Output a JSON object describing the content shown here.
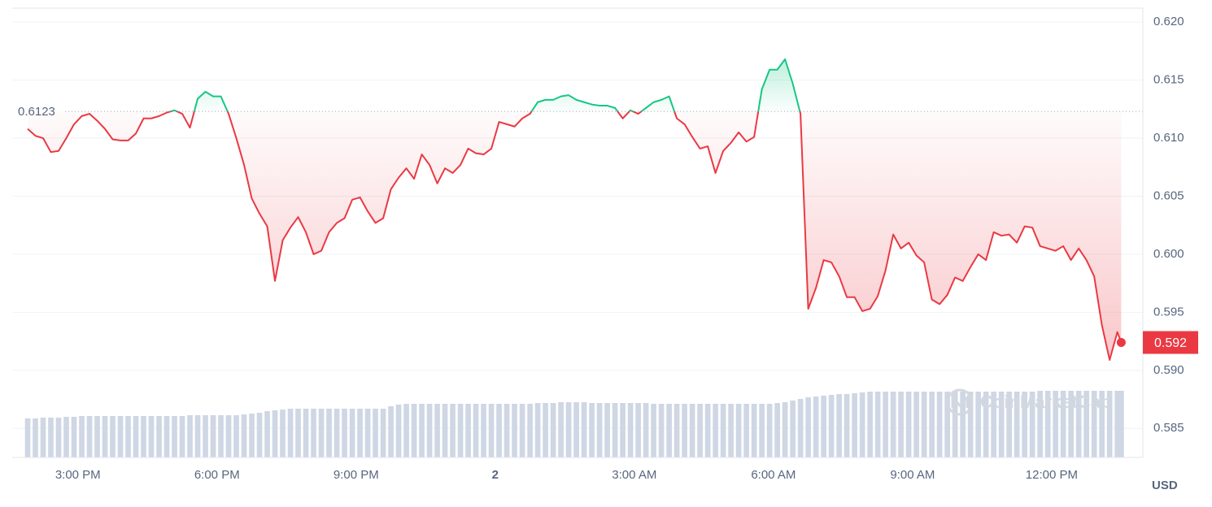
{
  "chart_data": {
    "type": "line",
    "x": [
      115,
      125,
      135,
      145,
      155,
      165,
      175,
      185,
      195,
      205,
      215,
      225,
      235,
      245,
      255,
      265,
      275,
      285,
      295,
      305,
      315,
      325,
      335,
      345,
      355,
      365,
      375,
      385,
      395,
      405,
      415,
      425,
      435,
      445,
      455,
      465,
      475,
      485,
      495,
      505,
      515,
      525,
      535,
      545,
      555,
      565,
      575,
      585,
      595,
      605,
      615,
      625,
      635,
      645,
      655,
      665,
      675,
      685,
      695,
      705,
      715,
      725,
      735,
      745,
      755,
      765,
      775,
      785,
      795,
      805,
      815,
      825,
      835,
      845,
      855,
      865,
      875,
      885,
      895,
      905,
      915,
      925,
      935,
      945,
      955,
      965,
      975,
      985,
      995,
      1005,
      1015,
      1025,
      1035,
      1045,
      1055,
      1065,
      1075,
      1085,
      1095,
      1105,
      1115,
      1125,
      1135,
      1145,
      1155,
      1165,
      1175,
      1185,
      1195,
      1205,
      1215,
      1225,
      1235,
      1245,
      1255,
      1265,
      1275,
      1285,
      1295,
      1305,
      1315,
      1325,
      1335,
      1345,
      1355,
      1365,
      1375,
      1385,
      1395,
      1405,
      1415,
      1425,
      1435,
      1445,
      1455,
      1465,
      1475,
      1485,
      1495,
      1505,
      1515,
      1525,
      1530
    ],
    "values": [
      0.6108,
      0.6102,
      0.61,
      0.6088,
      0.6089,
      0.61,
      0.6112,
      0.6119,
      0.6121,
      0.6115,
      0.6108,
      0.6099,
      0.6098,
      0.6098,
      0.6104,
      0.6117,
      0.6117,
      0.6119,
      0.6122,
      0.6124,
      0.6121,
      0.6109,
      0.6134,
      0.614,
      0.6136,
      0.6136,
      0.6121,
      0.61,
      0.6077,
      0.6048,
      0.6035,
      0.6024,
      0.5977,
      0.6012,
      0.6023,
      0.6032,
      0.6019,
      0.6,
      0.6003,
      0.6019,
      0.6027,
      0.6031,
      0.6047,
      0.6049,
      0.6037,
      0.6027,
      0.6031,
      0.6056,
      0.6066,
      0.6074,
      0.6065,
      0.6086,
      0.6077,
      0.6061,
      0.6074,
      0.607,
      0.6077,
      0.6091,
      0.6087,
      0.6086,
      0.6091,
      0.6114,
      0.6112,
      0.611,
      0.6117,
      0.6121,
      0.6131,
      0.6133,
      0.6133,
      0.6136,
      0.6137,
      0.6133,
      0.6131,
      0.6129,
      0.6128,
      0.6128,
      0.6126,
      0.6117,
      0.6124,
      0.6121,
      0.6126,
      0.6131,
      0.6133,
      0.6136,
      0.6117,
      0.6112,
      0.6101,
      0.6091,
      0.6093,
      0.607,
      0.6089,
      0.6096,
      0.6105,
      0.6097,
      0.6101,
      0.6142,
      0.6159,
      0.6159,
      0.6168,
      0.6147,
      0.6121,
      0.5953,
      0.5971,
      0.5995,
      0.5993,
      0.5981,
      0.5963,
      0.5963,
      0.5951,
      0.5953,
      0.5964,
      0.5986,
      0.6017,
      0.6005,
      0.601,
      0.5999,
      0.5993,
      0.5961,
      0.5957,
      0.5965,
      0.598,
      0.5977,
      0.5989,
      0.6,
      0.5995,
      0.6019,
      0.6016,
      0.6017,
      0.601,
      0.6024,
      0.6023,
      0.6007,
      0.6005,
      0.6003,
      0.6007,
      0.5995,
      0.6005,
      0.5995,
      0.5981,
      0.5939,
      0.5909,
      0.5933,
      0.5924
    ],
    "volume": [
      48,
      48,
      49,
      49,
      49,
      50,
      50,
      51,
      51,
      51,
      51,
      51,
      51,
      51,
      51,
      51,
      51,
      51,
      51,
      51,
      51,
      52,
      52,
      52,
      52,
      52,
      52,
      52,
      53,
      54,
      55,
      57,
      58,
      59,
      60,
      60,
      60,
      60,
      60,
      60,
      60,
      60,
      60,
      60,
      60,
      60,
      60,
      63,
      65,
      66,
      66,
      66,
      66,
      66,
      66,
      66,
      66,
      66,
      66,
      66,
      66,
      66,
      66,
      66,
      66,
      66,
      67,
      67,
      67,
      68,
      68,
      68,
      68,
      67,
      67,
      67,
      67,
      67,
      67,
      67,
      67,
      66,
      66,
      66,
      66,
      66,
      66,
      66,
      66,
      66,
      66,
      66,
      66,
      66,
      66,
      66,
      66,
      67,
      68,
      70,
      72,
      74,
      75,
      76,
      77,
      78,
      78,
      79,
      80,
      81,
      81,
      81,
      81,
      81,
      81,
      81,
      81,
      81,
      81,
      81,
      81,
      81,
      81,
      81,
      81,
      81,
      81,
      81,
      81,
      81,
      81,
      82,
      82,
      82,
      82,
      82,
      82,
      82,
      82,
      82,
      82,
      82,
      82
    ],
    "baseline": 0.6123,
    "last_value_label": "0.592",
    "currency": "USD",
    "watermark": "CoinMarketCap",
    "up_color": "#16c784",
    "down_color": "#ea3943",
    "volume_color": "#cfd6e4",
    "xlim": [
      95,
      1558
    ],
    "ylim": [
      0.5825,
      0.6212
    ],
    "xticks": [
      {
        "value": 180,
        "label": "3:00 PM"
      },
      {
        "value": 360,
        "label": "6:00 PM"
      },
      {
        "value": 540,
        "label": "9:00 PM"
      },
      {
        "value": 720,
        "label": "2"
      },
      {
        "value": 900,
        "label": "3:00 AM"
      },
      {
        "value": 1080,
        "label": "6:00 AM"
      },
      {
        "value": 1260,
        "label": "9:00 AM"
      },
      {
        "value": 1440,
        "label": "12:00 PM"
      }
    ],
    "yticks": [
      0.585,
      {
        "value": 0.59,
        "label": "0.590"
      },
      0.595,
      {
        "value": 0.6,
        "label": "0.600"
      },
      0.605,
      {
        "value": 0.61,
        "label": "0.610"
      },
      0.615,
      {
        "value": 0.62,
        "label": "0.620"
      }
    ],
    "grid": true
  }
}
